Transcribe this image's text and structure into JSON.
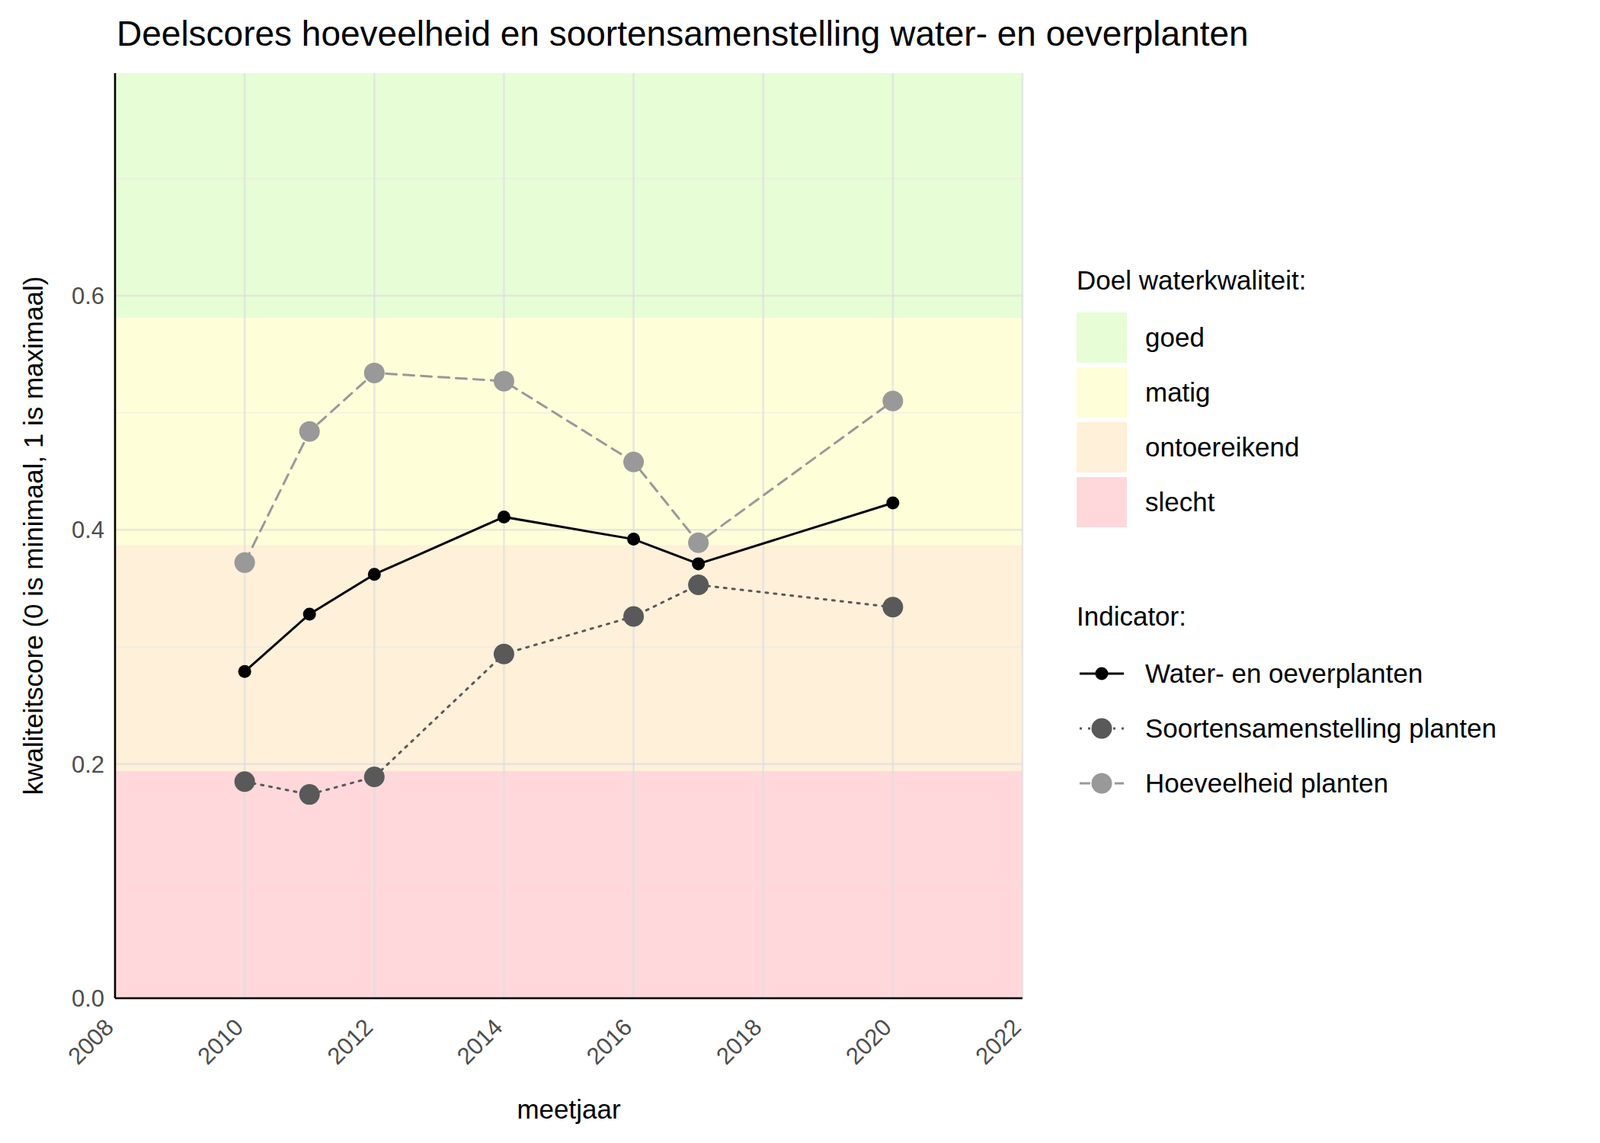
{
  "chart_data": {
    "type": "line",
    "title": "Deelscores hoeveelheid en soortensamenstelling water- en oeverplanten",
    "x_label": "meetjaar",
    "y_label": "kwaliteitscore (0 is minimaal, 1 is maximaal)",
    "x": [
      2010,
      2011,
      2012,
      2014,
      2016,
      2017,
      2020
    ],
    "series": [
      {
        "name": "Water- en oeverplanten",
        "color": "#000000",
        "line_style": "solid",
        "marker": "circle",
        "values": [
          0.279,
          0.328,
          0.362,
          0.411,
          0.392,
          0.371,
          0.423
        ]
      },
      {
        "name": "Soortensamenstelling planten",
        "color": "#595959",
        "line_style": "dotted",
        "marker": "circle",
        "values": [
          0.185,
          0.174,
          0.189,
          0.294,
          0.326,
          0.353,
          0.334
        ]
      },
      {
        "name": "Hoeveelheid planten",
        "color": "#999999",
        "line_style": "dashed",
        "marker": "circle",
        "values": [
          0.372,
          0.484,
          0.534,
          0.527,
          0.458,
          0.389,
          0.51
        ]
      }
    ],
    "bands_title": "Doel waterkwaliteit:",
    "bands": [
      {
        "name": "goed",
        "color": "#e6fdd6",
        "from": 0.581,
        "to": 0.79
      },
      {
        "name": "matig",
        "color": "#fefed9",
        "from": 0.387,
        "to": 0.581
      },
      {
        "name": "ontoereikend",
        "color": "#fef0d9",
        "from": 0.194,
        "to": 0.387
      },
      {
        "name": "slecht",
        "color": "#fed8db",
        "from": 0,
        "to": 0.194
      }
    ],
    "legend_title": "Indicator:",
    "legend": "right",
    "grid": true,
    "xlim": [
      2008,
      2022
    ],
    "xticks": [
      2008,
      2010,
      2012,
      2014,
      2016,
      2018,
      2020,
      2022
    ],
    "ylim": [
      0,
      0.79
    ],
    "yticks": [
      {
        "value": 0,
        "label": "0.0"
      },
      0.2,
      0.4,
      0.6
    ]
  }
}
